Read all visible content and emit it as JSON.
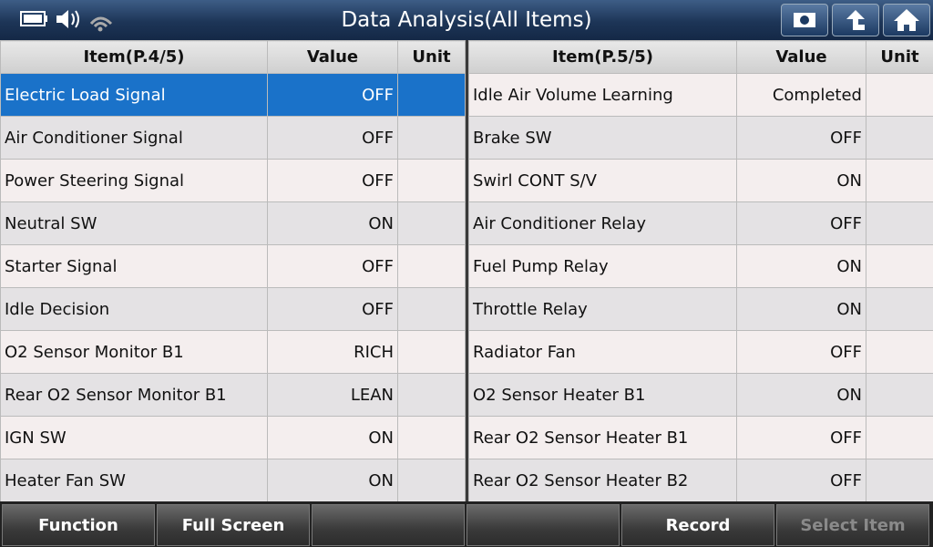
{
  "header": {
    "title": "Data Analysis(All Items)"
  },
  "tables": [
    {
      "columns": [
        "Item(P.4/5)",
        "Value",
        "Unit"
      ],
      "rows": [
        [
          "Electric Load Signal",
          "OFF"
        ],
        [
          "Air Conditioner Signal",
          "OFF"
        ],
        [
          "Power Steering Signal",
          "OFF"
        ],
        [
          "Neutral SW",
          "ON"
        ],
        [
          "Starter Signal",
          "OFF"
        ],
        [
          "Idle Decision",
          "OFF"
        ],
        [
          "O2 Sensor Monitor B1",
          "RICH"
        ],
        [
          "Rear O2 Sensor Monitor B1",
          "LEAN"
        ],
        [
          "IGN SW",
          "ON"
        ],
        [
          "Heater Fan SW",
          "ON"
        ]
      ]
    },
    {
      "columns": [
        "Item(P.5/5)",
        "Value",
        "Unit"
      ],
      "rows": [
        [
          "Idle Air Volume Learning",
          "Completed"
        ],
        [
          "Brake SW",
          "OFF"
        ],
        [
          "Swirl CONT S/V",
          "ON"
        ],
        [
          "Air Conditioner Relay",
          "OFF"
        ],
        [
          "Fuel Pump Relay",
          "ON"
        ],
        [
          "Throttle Relay",
          "ON"
        ],
        [
          "Radiator Fan",
          "OFF"
        ],
        [
          "O2 Sensor Heater B1",
          "ON"
        ],
        [
          "Rear O2 Sensor Heater B1",
          "OFF"
        ],
        [
          "Rear O2 Sensor Heater B2",
          "OFF"
        ]
      ]
    }
  ],
  "footer": {
    "buttons": [
      "Function",
      "Full Screen",
      "Record",
      "Select Item"
    ]
  }
}
